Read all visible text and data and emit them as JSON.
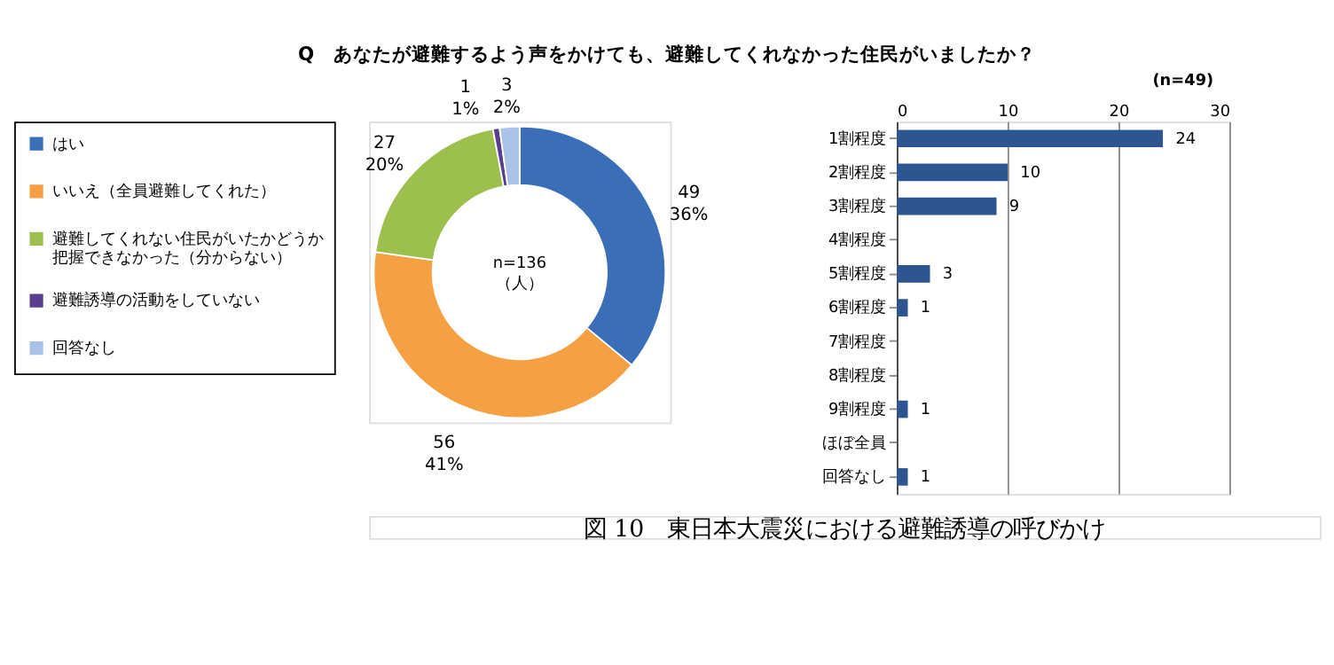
{
  "chart_data": [
    {
      "type": "donut",
      "title": "Q　あなたが避難するよう声をかけても、避難してくれなかった住民がいましたか？",
      "categories": [
        "はい",
        "いいえ（全員避難してくれた）",
        "避難してくれない住民がいたかどうか把握できなかった（分からない）",
        "避難誘導の活動をしていない",
        "回答なし"
      ],
      "values": [
        49,
        56,
        27,
        1,
        3
      ],
      "value_labels": [
        "49\n36%",
        "56\n41%",
        "27\n20%",
        "1\n1%",
        "3\n2%"
      ],
      "colors": [
        "#3a6fb8",
        "#f5a042",
        "#9cbf4e",
        "#5a3f8f",
        "#a9c2e6"
      ],
      "legend": "left",
      "annotations": [
        "n=136\n（人）",
        "図 10　東日本大震災における避難誘導の呼びかけ"
      ]
    },
    {
      "type": "bar",
      "orientation": "horizontal",
      "categories": [
        "1割程度",
        "2割程度",
        "3割程度",
        "4割程度",
        "5割程度",
        "6割程度",
        "7割程度",
        "8割程度",
        "9割程度",
        "ほぼ全員",
        "回答なし"
      ],
      "values": [
        24,
        10,
        9,
        0,
        3,
        1,
        0,
        0,
        1,
        0,
        1
      ],
      "value_labels": [
        "24",
        "10",
        "9",
        null,
        "3",
        "1",
        null,
        null,
        "1",
        null,
        "1"
      ],
      "color": "#2d5592",
      "xlim": [
        0,
        30
      ],
      "xticks": [
        0,
        10,
        20,
        30
      ],
      "grid": "x",
      "annotations": [
        "(n=49)"
      ]
    }
  ]
}
